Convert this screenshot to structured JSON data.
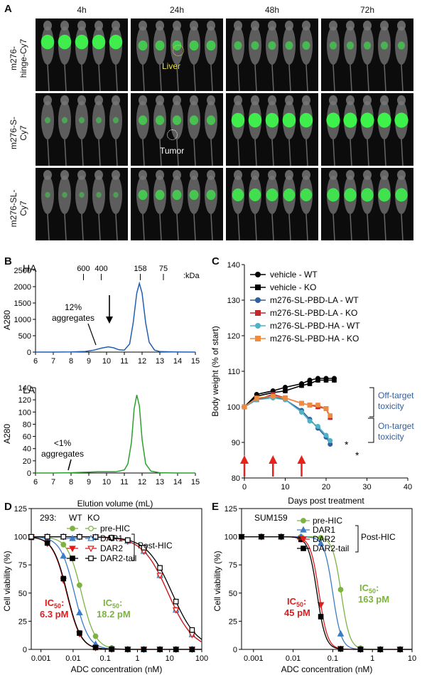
{
  "panel_a": {
    "letter": "A",
    "timepoints": [
      "4h",
      "24h",
      "48h",
      "72h"
    ],
    "rows": [
      {
        "label_lines": [
          "m276-",
          "hinge-Cy7"
        ],
        "signal": [
          0.9,
          0.5,
          0.35,
          0.3
        ]
      },
      {
        "label_lines": [
          "m276-S-",
          "Cy7"
        ],
        "signal": [
          0.15,
          0.45,
          0.9,
          0.95
        ]
      },
      {
        "label_lines": [
          "m276-SL-",
          "Cy7"
        ],
        "signal": [
          0.1,
          0.5,
          0.75,
          0.8
        ]
      }
    ],
    "annotations": {
      "liver": "Liver",
      "tumor": "Tumor"
    },
    "colors": {
      "background": "#0c0c0c",
      "signal": "#3bff4a",
      "liver_circle": "#f3e33a",
      "tumor_circle": "#ffffff"
    }
  },
  "panel_b": {
    "letter": "B",
    "top_label": "HA",
    "bottom_label": "LA",
    "markers": [
      "600",
      "400",
      "158",
      "75"
    ],
    "marker_unit": ":kDa",
    "top_annotation": [
      "12%",
      "aggregates"
    ],
    "bottom_annotation": [
      "<1%",
      "aggregates"
    ],
    "ylabel": "A280",
    "xlabel": "Elution volume (mL)"
  },
  "panel_c": {
    "letter": "C",
    "ylabel": "Body weight (% of start)",
    "xlabel": "Days post treatment",
    "bracket_off": [
      "Off-target",
      "toxicity"
    ],
    "bracket_on": [
      "On-target",
      "toxicity"
    ],
    "star": "*",
    "legend": [
      "vehicle - WT",
      "vehicle - KO",
      "m276-SL-PBD-LA - WT",
      "m276-SL-PBD-LA - KO",
      "m276-SL-PBD-HA - WT",
      "m276-SL-PBD-HA - KO"
    ]
  },
  "panel_d": {
    "letter": "D",
    "cell_line": "293:",
    "col_wt": "WT",
    "col_ko": "KO",
    "legend": [
      "pre-HIC",
      "DAR1",
      "DAR2",
      "DAR2-tail"
    ],
    "post_hic": "Post-HIC",
    "ic50_red_label": "IC50:",
    "ic50_red_value": "6.3 pM",
    "ic50_green_label": "IC50:",
    "ic50_green_value": "18.2 pM",
    "ylabel": "Cell viability (%)",
    "xlabel": "ADC concentration (nM)"
  },
  "panel_e": {
    "letter": "E",
    "cell_line": "SUM159",
    "legend": [
      "pre-HIC",
      "DAR1",
      "DAR2",
      "DAR2-tail"
    ],
    "post_hic": "Post-HIC",
    "ic50_red_label": "IC50:",
    "ic50_red_value": "45 pM",
    "ic50_green_label": "IC50:",
    "ic50_green_value": "163 pM",
    "ylabel": "Cell viability (%)",
    "xlabel": "ADC concentration (nM)"
  },
  "chart_data": [
    {
      "type": "line",
      "panel": "B-top",
      "title": "HA",
      "xlabel": "Elution volume (mL)",
      "ylabel": "A280",
      "xlim": [
        6,
        15
      ],
      "ylim": [
        0,
        2500
      ],
      "x_ticks": [
        6,
        7,
        8,
        9,
        10,
        11,
        12,
        13,
        14,
        15
      ],
      "y_ticks": [
        0,
        500,
        1000,
        1500,
        2000,
        2500
      ],
      "series": [
        {
          "color": "#1f5fb4",
          "x": [
            6,
            7,
            8,
            8.8,
            9.3,
            9.7,
            10.1,
            10.4,
            10.7,
            11.0,
            11.3,
            11.5,
            11.7,
            11.85,
            12.0,
            12.2,
            12.4,
            12.7,
            13.0,
            14,
            15
          ],
          "y": [
            0,
            0,
            5,
            20,
            60,
            120,
            160,
            130,
            70,
            60,
            250,
            900,
            1800,
            2100,
            1800,
            900,
            300,
            60,
            15,
            2,
            0
          ]
        }
      ]
    },
    {
      "type": "line",
      "panel": "B-bottom",
      "title": "LA",
      "xlabel": "Elution volume (mL)",
      "ylabel": "A280",
      "xlim": [
        6,
        15
      ],
      "ylim": [
        0,
        140
      ],
      "x_ticks": [
        6,
        7,
        8,
        9,
        10,
        11,
        12,
        13,
        14,
        15
      ],
      "y_ticks": [
        0,
        20,
        40,
        60,
        80,
        100,
        120,
        140
      ],
      "series": [
        {
          "color": "#2ca02c",
          "x": [
            6,
            7,
            8,
            8.5,
            9,
            9.5,
            10,
            10.5,
            11,
            11.2,
            11.4,
            11.55,
            11.7,
            11.85,
            12.0,
            12.2,
            12.5,
            13,
            14,
            15
          ],
          "y": [
            0,
            0,
            0.5,
            1,
            1.5,
            2,
            2,
            2,
            5,
            15,
            50,
            105,
            128,
            110,
            55,
            15,
            3,
            0.5,
            0,
            0
          ]
        }
      ]
    },
    {
      "type": "line",
      "panel": "C",
      "xlabel": "Days post treatment",
      "ylabel": "Body weight (% of start)",
      "xlim": [
        0,
        40
      ],
      "ylim": [
        80,
        140
      ],
      "x_ticks": [
        0,
        10,
        20,
        30,
        40
      ],
      "y_ticks": [
        80,
        90,
        100,
        110,
        120,
        130,
        140
      ],
      "dosing_days": [
        0,
        7,
        14
      ],
      "series": [
        {
          "name": "vehicle - WT",
          "color": "#000000",
          "marker": "circle",
          "x": [
            0,
            3,
            7,
            10,
            14,
            16,
            18,
            20,
            22
          ],
          "y": [
            100,
            103.5,
            104.5,
            105.5,
            106.5,
            107.5,
            108,
            108,
            108
          ]
        },
        {
          "name": "vehicle - KO",
          "color": "#000000",
          "marker": "square",
          "x": [
            0,
            3,
            7,
            10,
            14,
            16,
            18,
            20,
            22
          ],
          "y": [
            100,
            103,
            104,
            104.5,
            106,
            106.5,
            107.5,
            107.5,
            107.5
          ]
        },
        {
          "name": "m276-SL-PBD-LA - WT",
          "color": "#2f5f9e",
          "marker": "circle",
          "x": [
            0,
            3,
            7,
            10,
            14,
            16,
            18,
            20,
            21
          ],
          "y": [
            100,
            102,
            103,
            102,
            99,
            96.5,
            94,
            91.5,
            89.5
          ]
        },
        {
          "name": "m276-SL-PBD-LA - KO",
          "color": "#c0282d",
          "marker": "square",
          "x": [
            0,
            3,
            7,
            10,
            14,
            16,
            18,
            20,
            21
          ],
          "y": [
            100,
            102,
            103.5,
            102.5,
            101,
            100.5,
            100,
            99.5,
            97
          ]
        },
        {
          "name": "m276-SL-PBD-HA - WT",
          "color": "#4fb3c8",
          "marker": "circle",
          "x": [
            0,
            3,
            7,
            10,
            14,
            16,
            18,
            20,
            21
          ],
          "y": [
            100,
            102,
            102.5,
            102,
            98.5,
            96,
            94.5,
            92,
            90.5
          ]
        },
        {
          "name": "m276-SL-PBD-HA - KO",
          "color": "#f08a3c",
          "marker": "square",
          "x": [
            0,
            3,
            7,
            10,
            14,
            16,
            18,
            20,
            21
          ],
          "y": [
            100,
            102.5,
            103,
            102.5,
            101,
            100.5,
            100.5,
            99.5,
            97.5
          ]
        }
      ]
    },
    {
      "type": "scatter",
      "panel": "D",
      "xlabel": "ADC concentration (nM)",
      "ylabel": "Cell viability (%)",
      "x_scale": "log",
      "xlim": [
        0.0005,
        100
      ],
      "ylim": [
        0,
        125
      ],
      "x_ticks": [
        0.001,
        0.01,
        0.1,
        1,
        10,
        100
      ],
      "y_ticks": [
        0,
        25,
        50,
        75,
        100,
        125
      ],
      "series": [
        {
          "name": "pre-HIC WT",
          "color": "#7cb342",
          "marker": "circle",
          "filled": true,
          "ic50": 0.0182
        },
        {
          "name": "DAR1 WT",
          "color": "#3a7cc8",
          "marker": "triangle",
          "filled": true,
          "ic50": 0.011
        },
        {
          "name": "DAR2 WT",
          "color": "#e01b1b",
          "marker": "triangle-down",
          "filled": true,
          "ic50": 0.0063
        },
        {
          "name": "DAR2-tail WT",
          "color": "#000000",
          "marker": "square",
          "filled": true,
          "ic50": 0.0065
        },
        {
          "name": "pre-HIC KO",
          "color": "#7cb342",
          "marker": "circle",
          "filled": false,
          "ic50": 9
        },
        {
          "name": "DAR1 KO",
          "color": "#3a7cc8",
          "marker": "triangle",
          "filled": false,
          "ic50": 9
        },
        {
          "name": "DAR2 KO",
          "color": "#e01b1b",
          "marker": "triangle-down",
          "filled": false,
          "ic50": 9
        },
        {
          "name": "DAR2-tail KO",
          "color": "#000000",
          "marker": "square",
          "filled": false,
          "ic50": 12
        }
      ]
    },
    {
      "type": "scatter",
      "panel": "E",
      "xlabel": "ADC concentration (nM)",
      "ylabel": "Cell viability (%)",
      "x_scale": "log",
      "xlim": [
        0.0005,
        10
      ],
      "ylim": [
        0,
        125
      ],
      "x_ticks": [
        0.001,
        0.01,
        0.1,
        1,
        10
      ],
      "y_ticks": [
        0,
        25,
        50,
        75,
        100,
        125
      ],
      "series": [
        {
          "name": "pre-HIC",
          "color": "#7cb342",
          "marker": "circle",
          "ic50": 0.163
        },
        {
          "name": "DAR1",
          "color": "#3a7cc8",
          "marker": "triangle",
          "ic50": 0.1
        },
        {
          "name": "DAR2",
          "color": "#e01b1b",
          "marker": "triangle-down",
          "ic50": 0.045
        },
        {
          "name": "DAR2-tail",
          "color": "#000000",
          "marker": "square",
          "ic50": 0.04
        }
      ]
    }
  ]
}
